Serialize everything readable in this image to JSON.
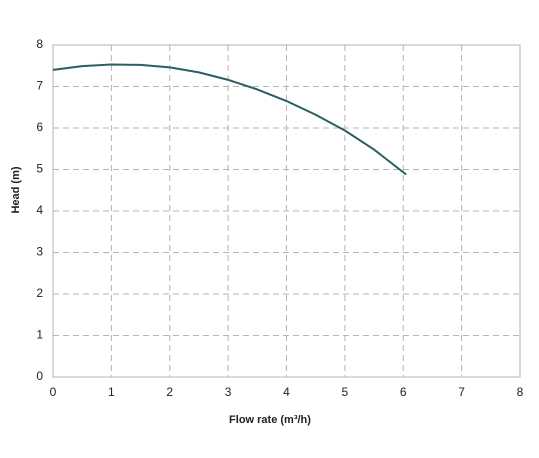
{
  "chart_data": {
    "type": "line",
    "x_label": "Flow rate (m³/h)",
    "y_label": "Head (m)",
    "x": [
      0,
      0.5,
      1,
      1.5,
      2,
      2.5,
      3,
      3.5,
      4,
      4.5,
      5,
      5.5,
      6.05
    ],
    "series": [
      {
        "color": "#2b5f62",
        "values": [
          7.4,
          7.49,
          7.53,
          7.52,
          7.46,
          7.34,
          7.16,
          6.93,
          6.65,
          6.32,
          5.94,
          5.48,
          4.88
        ]
      }
    ],
    "xlim": [
      0,
      8
    ],
    "xticks": [
      0,
      1,
      2,
      3,
      4,
      5,
      6,
      7,
      8
    ],
    "ylim": [
      0,
      8
    ],
    "yticks": [
      0,
      1,
      2,
      3,
      4,
      5,
      6,
      7,
      8
    ],
    "grid": true
  }
}
